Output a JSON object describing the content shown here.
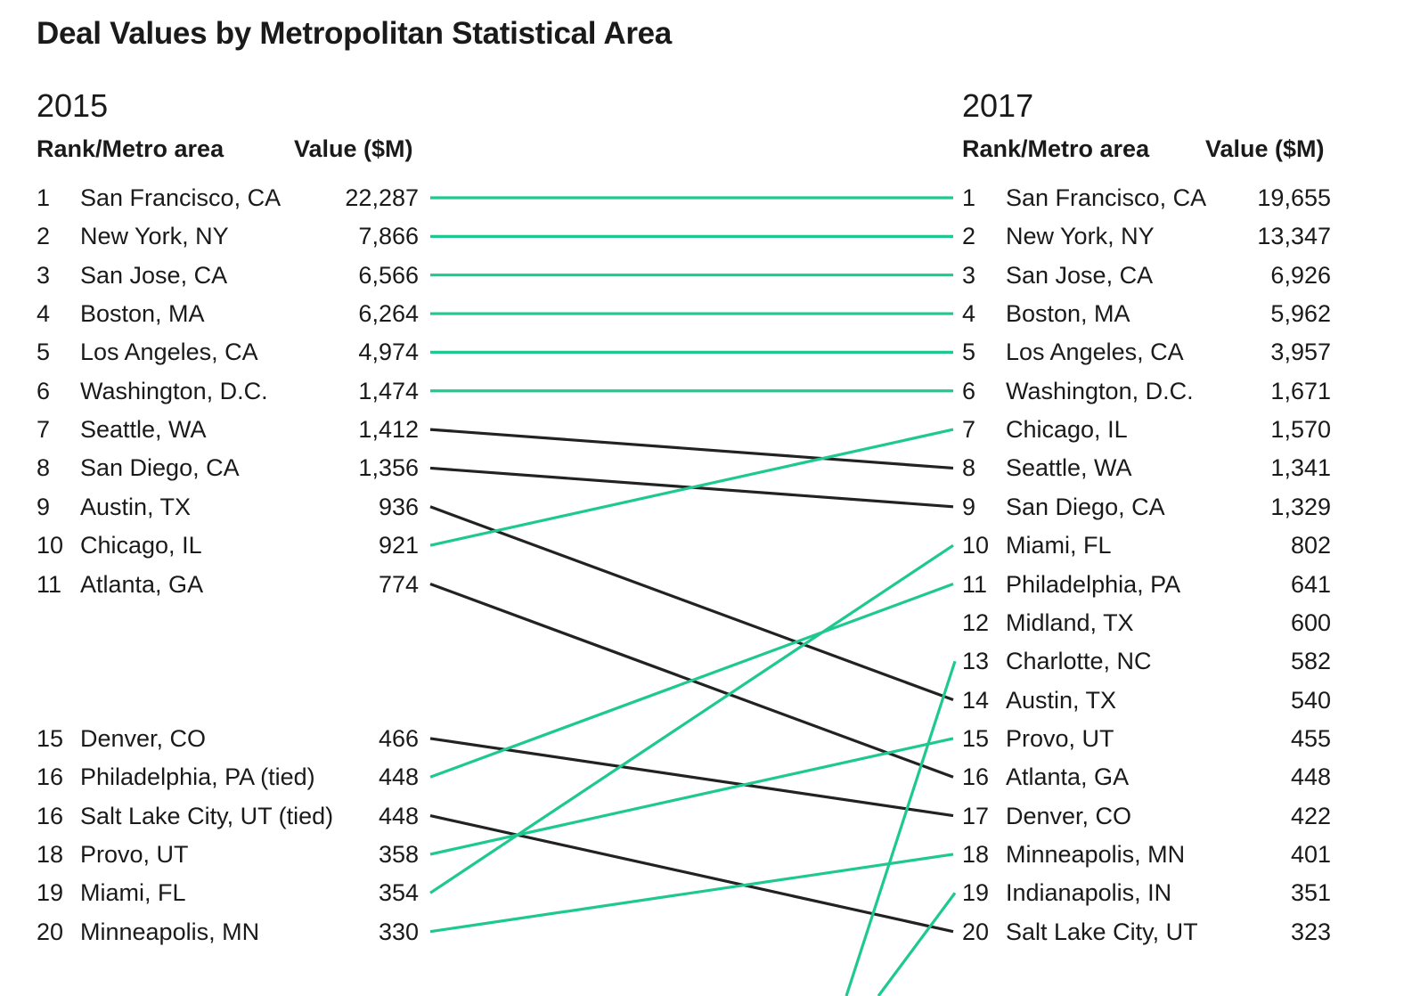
{
  "title": "Deal Values by Metropolitan Statistical Area",
  "colors": {
    "up": "#1ec98f",
    "down": "#222222",
    "text": "#1a1a1a"
  },
  "chart_data": {
    "type": "slope",
    "title": "Deal Values by Metropolitan Statistical Area",
    "left": {
      "year": "2015",
      "header_rank": "Rank/Metro area",
      "header_value": "Value ($M)",
      "rows": [
        {
          "rank": "1",
          "metro": "San Francisco, CA",
          "value": "22,287"
        },
        {
          "rank": "2",
          "metro": "New York, NY",
          "value": "7,866"
        },
        {
          "rank": "3",
          "metro": "San Jose, CA",
          "value": "6,566"
        },
        {
          "rank": "4",
          "metro": "Boston, MA",
          "value": "6,264"
        },
        {
          "rank": "5",
          "metro": "Los Angeles, CA",
          "value": "4,974"
        },
        {
          "rank": "6",
          "metro": "Washington, D.C.",
          "value": "1,474"
        },
        {
          "rank": "7",
          "metro": "Seattle, WA",
          "value": "1,412"
        },
        {
          "rank": "8",
          "metro": "San Diego, CA",
          "value": "1,356"
        },
        {
          "rank": "9",
          "metro": "Austin, TX",
          "value": "936"
        },
        {
          "rank": "10",
          "metro": "Chicago, IL",
          "value": "921"
        },
        {
          "rank": "11",
          "metro": "Atlanta, GA",
          "value": "774"
        },
        {
          "rank": "15",
          "metro": "Denver, CO",
          "value": "466"
        },
        {
          "rank": "16",
          "metro": "Philadelphia, PA (tied)",
          "value": "448"
        },
        {
          "rank": "16",
          "metro": "Salt Lake City, UT (tied)",
          "value": "448"
        },
        {
          "rank": "18",
          "metro": "Provo, UT",
          "value": "358"
        },
        {
          "rank": "19",
          "metro": "Miami, FL",
          "value": "354"
        },
        {
          "rank": "20",
          "metro": "Minneapolis, MN",
          "value": "330"
        }
      ]
    },
    "right": {
      "year": "2017",
      "header_rank": "Rank/Metro area",
      "header_value": "Value ($M)",
      "rows": [
        {
          "rank": "1",
          "metro": "San Francisco, CA",
          "value": "19,655"
        },
        {
          "rank": "2",
          "metro": "New York, NY",
          "value": "13,347"
        },
        {
          "rank": "3",
          "metro": "San Jose, CA",
          "value": "6,926"
        },
        {
          "rank": "4",
          "metro": "Boston, MA",
          "value": "5,962"
        },
        {
          "rank": "5",
          "metro": "Los Angeles, CA",
          "value": "3,957"
        },
        {
          "rank": "6",
          "metro": "Washington, D.C.",
          "value": "1,671"
        },
        {
          "rank": "7",
          "metro": "Chicago, IL",
          "value": "1,570"
        },
        {
          "rank": "8",
          "metro": "Seattle, WA",
          "value": "1,341"
        },
        {
          "rank": "9",
          "metro": "San Diego, CA",
          "value": "1,329"
        },
        {
          "rank": "10",
          "metro": "Miami, FL",
          "value": "802"
        },
        {
          "rank": "11",
          "metro": "Philadelphia, PA",
          "value": "641"
        },
        {
          "rank": "12",
          "metro": "Midland, TX",
          "value": "600"
        },
        {
          "rank": "13",
          "metro": "Charlotte, NC",
          "value": "582"
        },
        {
          "rank": "14",
          "metro": "Austin, TX",
          "value": "540"
        },
        {
          "rank": "15",
          "metro": "Provo, UT",
          "value": "455"
        },
        {
          "rank": "16",
          "metro": "Atlanta, GA",
          "value": "448"
        },
        {
          "rank": "17",
          "metro": "Denver, CO",
          "value": "422"
        },
        {
          "rank": "18",
          "metro": "Minneapolis, MN",
          "value": "401"
        },
        {
          "rank": "19",
          "metro": "Indianapolis, IN",
          "value": "351"
        },
        {
          "rank": "20",
          "metro": "Salt Lake City, UT",
          "value": "323"
        }
      ]
    },
    "connections": [
      {
        "from_rank": 1,
        "to_rank": 1,
        "direction": "up"
      },
      {
        "from_rank": 2,
        "to_rank": 2,
        "direction": "up"
      },
      {
        "from_rank": 3,
        "to_rank": 3,
        "direction": "up"
      },
      {
        "from_rank": 4,
        "to_rank": 4,
        "direction": "up"
      },
      {
        "from_rank": 5,
        "to_rank": 5,
        "direction": "up"
      },
      {
        "from_rank": 6,
        "to_rank": 6,
        "direction": "up"
      },
      {
        "from_rank": 7,
        "to_rank": 8,
        "direction": "down"
      },
      {
        "from_rank": 8,
        "to_rank": 9,
        "direction": "down"
      },
      {
        "from_rank": 9,
        "to_rank": 14,
        "direction": "down"
      },
      {
        "from_rank": 10,
        "to_rank": 7,
        "direction": "up"
      },
      {
        "from_rank": 11,
        "to_rank": 16,
        "direction": "down"
      },
      {
        "from_rank": 15,
        "to_rank": 17,
        "direction": "down"
      },
      {
        "from_rank": 16,
        "to_rank": 11,
        "direction": "up"
      },
      {
        "from_rank": 16.5,
        "to_rank": 20,
        "direction": "down"
      },
      {
        "from_rank": 18,
        "to_rank": 15,
        "direction": "up"
      },
      {
        "from_rank": 19,
        "to_rank": 10,
        "direction": "up"
      },
      {
        "from_rank": 20,
        "to_rank": 18,
        "direction": "up"
      },
      {
        "from_rank": null,
        "to_rank": 13,
        "direction": "up"
      },
      {
        "from_rank": null,
        "to_rank": 19,
        "direction": "up"
      }
    ]
  }
}
